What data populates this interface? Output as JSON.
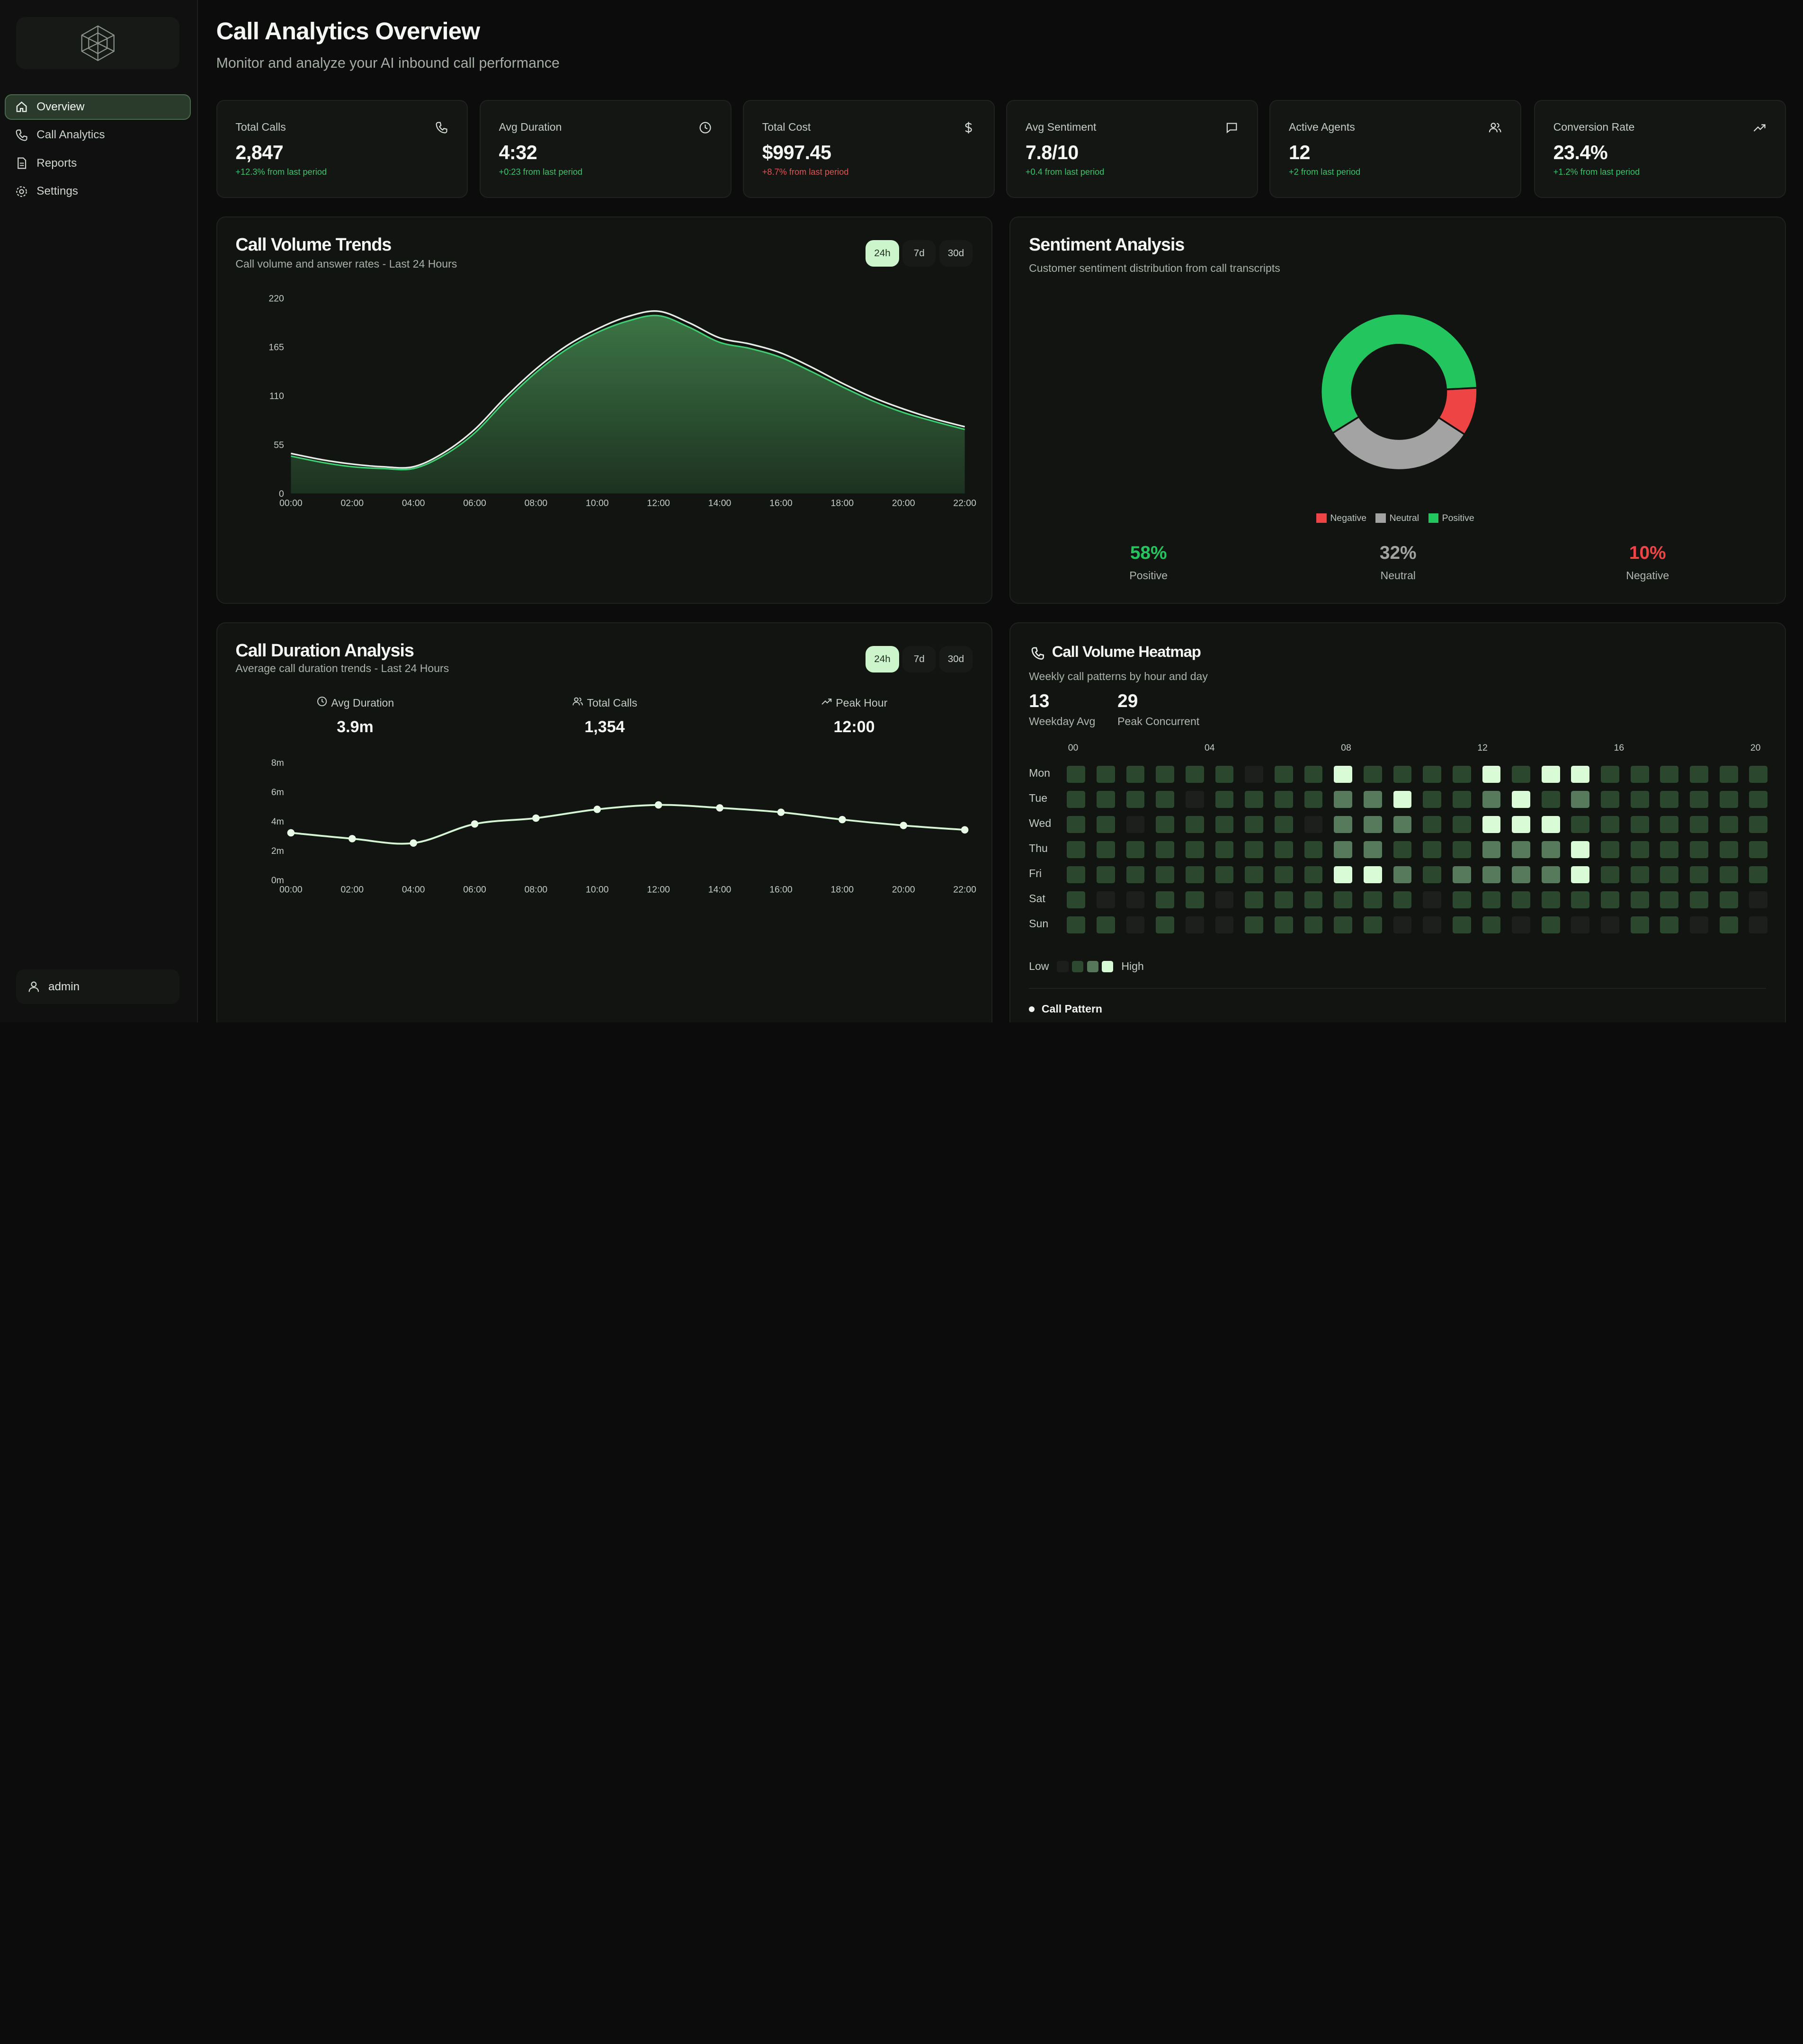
{
  "sidebar": {
    "items": [
      {
        "label": "Overview",
        "icon": "home-icon",
        "active": true
      },
      {
        "label": "Call Analytics",
        "icon": "phone-icon",
        "active": false
      },
      {
        "label": "Reports",
        "icon": "file-icon",
        "active": false
      },
      {
        "label": "Settings",
        "icon": "gear-icon",
        "active": false
      }
    ],
    "user": "admin"
  },
  "header": {
    "title": "Call Analytics Overview",
    "subtitle": "Monitor and analyze your AI inbound call performance"
  },
  "stats": [
    {
      "label": "Total Calls",
      "value": "2,847",
      "change": "+12.3% from last period",
      "trend": "pos",
      "icon": "phone-icon"
    },
    {
      "label": "Avg Duration",
      "value": "4:32",
      "change": "+0:23 from last period",
      "trend": "pos",
      "icon": "clock-icon"
    },
    {
      "label": "Total Cost",
      "value": "$997.45",
      "change": "+8.7% from last period",
      "trend": "neg",
      "icon": "dollar-icon"
    },
    {
      "label": "Avg Sentiment",
      "value": "7.8/10",
      "change": "+0.4 from last period",
      "trend": "pos",
      "icon": "message-icon"
    },
    {
      "label": "Active Agents",
      "value": "12",
      "change": "+2 from last period",
      "trend": "pos",
      "icon": "users-icon"
    },
    {
      "label": "Conversion Rate",
      "value": "23.4%",
      "change": "+1.2% from last period",
      "trend": "pos",
      "icon": "trending-up-icon"
    }
  ],
  "volume_panel": {
    "title": "Call Volume Trends",
    "subtitle": "Call volume and answer rates - Last 24 Hours",
    "ranges": [
      "24h",
      "7d",
      "30d"
    ]
  },
  "sentiment_panel": {
    "title": "Sentiment Analysis",
    "subtitle": "Customer sentiment distribution from call transcripts",
    "stats": [
      {
        "pct": "58%",
        "label": "Positive"
      },
      {
        "pct": "32%",
        "label": "Neutral"
      },
      {
        "pct": "10%",
        "label": "Negative"
      }
    ]
  },
  "duration_panel": {
    "title": "Call Duration Analysis",
    "subtitle": "Average call duration trends - Last 24 Hours",
    "ranges": [
      "24h",
      "7d",
      "30d"
    ],
    "stats": [
      {
        "label": "Avg Duration",
        "value": "3.9m",
        "icon": "clock-icon"
      },
      {
        "label": "Total Calls",
        "value": "1,354",
        "icon": "users-icon"
      },
      {
        "label": "Peak Hour",
        "value": "12:00",
        "icon": "trending-up-icon"
      }
    ]
  },
  "heatmap_panel": {
    "title": "Call Volume Heatmap",
    "subtitle": "Weekly call patterns by hour and day",
    "weekday_avg": "13",
    "weekday_avg_label": "Weekday Avg",
    "peak_concurrent": "29",
    "peak_concurrent_label": "Peak Concurrent",
    "legend_low": "Low",
    "legend_high": "High",
    "pattern_label": "Call Pattern"
  },
  "colors": {
    "accent": "#cdf5cb",
    "positive": "#22c55e",
    "neutral": "#a3a3a3",
    "negative": "#ef4444"
  },
  "chart_data": [
    {
      "type": "area",
      "x": [
        "00:00",
        "01:00",
        "02:00",
        "03:00",
        "04:00",
        "05:00",
        "06:00",
        "07:00",
        "08:00",
        "09:00",
        "10:00",
        "11:00",
        "12:00",
        "13:00",
        "14:00",
        "15:00",
        "16:00",
        "17:00",
        "18:00",
        "19:00",
        "20:00",
        "21:00",
        "22:00"
      ],
      "x_ticks": [
        "00:00",
        "02:00",
        "04:00",
        "06:00",
        "08:00",
        "10:00",
        "12:00",
        "14:00",
        "16:00",
        "18:00",
        "20:00",
        "22:00"
      ],
      "series": [
        {
          "values": [
            45,
            38,
            33,
            30,
            30,
            46,
            72,
            108,
            140,
            166,
            185,
            199,
            205,
            192,
            175,
            168,
            158,
            142,
            124,
            108,
            95,
            84,
            75
          ]
        },
        {
          "values": [
            42,
            35,
            30,
            28,
            28,
            43,
            68,
            104,
            136,
            162,
            181,
            194,
            200,
            187,
            170,
            163,
            153,
            137,
            120,
            104,
            91,
            81,
            72
          ]
        }
      ],
      "yticks": [
        0,
        55,
        110,
        165,
        220
      ],
      "ylim": [
        0,
        220
      ]
    },
    {
      "type": "donut",
      "series": [
        {
          "name": "Negative",
          "values": [
            10
          ]
        },
        {
          "name": "Neutral",
          "values": [
            32
          ]
        },
        {
          "name": "Positive",
          "values": [
            58
          ]
        }
      ]
    },
    {
      "type": "line",
      "x": [
        "00:00",
        "02:00",
        "04:00",
        "06:00",
        "08:00",
        "10:00",
        "12:00",
        "14:00",
        "16:00",
        "18:00",
        "20:00",
        "22:00"
      ],
      "series": [
        {
          "values": [
            3.2,
            2.8,
            2.5,
            3.8,
            4.2,
            4.8,
            5.1,
            4.9,
            4.6,
            4.1,
            3.7,
            3.4
          ]
        }
      ],
      "ylabels": [
        "0m",
        "2m",
        "4m",
        "6m",
        "8m"
      ],
      "ylim": [
        0,
        8
      ]
    },
    {
      "type": "heatmap",
      "days": [
        "Mon",
        "Tue",
        "Wed",
        "Thu",
        "Fri",
        "Sat",
        "Sun"
      ],
      "hour_labels": [
        {
          "label": "00",
          "col": 0
        },
        {
          "label": "04",
          "col": 4.6
        },
        {
          "label": "08",
          "col": 9.2
        },
        {
          "label": "12",
          "col": 13.8
        },
        {
          "label": "16",
          "col": 18.4
        },
        {
          "label": "20",
          "col": 23
        }
      ],
      "values": [
        [
          2,
          2,
          2,
          2,
          2,
          2,
          1,
          2,
          2,
          4,
          2,
          2,
          2,
          2,
          4,
          2,
          4,
          4,
          2,
          2,
          2,
          2,
          2,
          2
        ],
        [
          2,
          2,
          2,
          2,
          1,
          2,
          2,
          2,
          2,
          3,
          3,
          4,
          2,
          2,
          3,
          4,
          2,
          3,
          2,
          2,
          2,
          2,
          2,
          2
        ],
        [
          2,
          2,
          1,
          2,
          2,
          2,
          2,
          2,
          1,
          3,
          3,
          3,
          2,
          2,
          4,
          4,
          4,
          2,
          2,
          2,
          2,
          2,
          2,
          2
        ],
        [
          2,
          2,
          2,
          2,
          2,
          2,
          2,
          2,
          2,
          3,
          3,
          2,
          2,
          2,
          3,
          3,
          3,
          4,
          2,
          2,
          2,
          2,
          2,
          2
        ],
        [
          2,
          2,
          2,
          2,
          2,
          2,
          2,
          2,
          2,
          4,
          4,
          3,
          2,
          3,
          3,
          3,
          3,
          4,
          2,
          2,
          2,
          2,
          2,
          2
        ],
        [
          2,
          1,
          1,
          2,
          2,
          1,
          2,
          2,
          2,
          2,
          2,
          2,
          1,
          2,
          2,
          2,
          2,
          2,
          2,
          2,
          2,
          2,
          2,
          1
        ],
        [
          2,
          2,
          1,
          2,
          1,
          1,
          2,
          2,
          2,
          2,
          2,
          1,
          1,
          2,
          2,
          1,
          2,
          1,
          1,
          2,
          2,
          1,
          2,
          1
        ]
      ]
    }
  ]
}
